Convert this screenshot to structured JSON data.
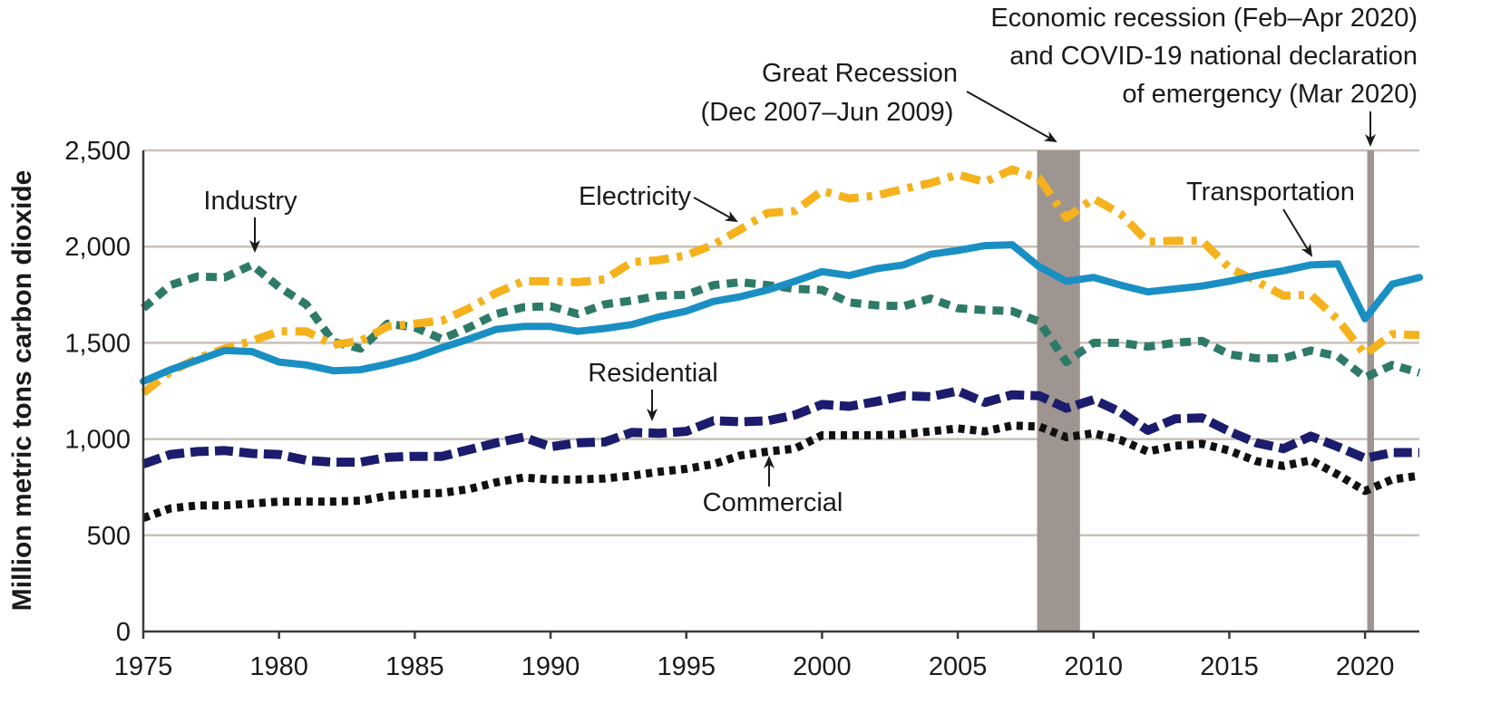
{
  "chart_data": {
    "type": "line",
    "ylabel": "Million metric tons carbon dioxide",
    "xlim": [
      1975,
      2022
    ],
    "ylim": [
      0,
      2500
    ],
    "x_ticks": [
      1975,
      1980,
      1985,
      1990,
      1995,
      2000,
      2005,
      2010,
      2015,
      2020
    ],
    "x_tick_labels": [
      "1975",
      "1980",
      "1985",
      "1990",
      "1995",
      "2000",
      "2005",
      "2010",
      "2015",
      "2020"
    ],
    "y_ticks": [
      0,
      500,
      1000,
      1500,
      2000,
      2500
    ],
    "y_tick_labels": [
      "0",
      "500",
      "1,000",
      "1,500",
      "2,000",
      "2,500"
    ],
    "grid": true,
    "x": [
      1975,
      1976,
      1977,
      1978,
      1979,
      1980,
      1981,
      1982,
      1983,
      1984,
      1985,
      1986,
      1987,
      1988,
      1989,
      1990,
      1991,
      1992,
      1993,
      1994,
      1995,
      1996,
      1997,
      1998,
      1999,
      2000,
      2001,
      2002,
      2003,
      2004,
      2005,
      2006,
      2007,
      2008,
      2009,
      2010,
      2011,
      2012,
      2013,
      2014,
      2015,
      2016,
      2017,
      2018,
      2019,
      2020,
      2021,
      2022
    ],
    "series": [
      {
        "name": "Transportation",
        "color": "#1a8fc4",
        "style": "solid",
        "values": [
          1300,
          1360,
          1410,
          1460,
          1455,
          1400,
          1385,
          1355,
          1360,
          1390,
          1425,
          1475,
          1520,
          1570,
          1585,
          1585,
          1560,
          1575,
          1595,
          1635,
          1665,
          1715,
          1740,
          1775,
          1820,
          1870,
          1850,
          1885,
          1905,
          1960,
          1980,
          2005,
          2010,
          1895,
          1820,
          1840,
          1800,
          1765,
          1780,
          1795,
          1820,
          1850,
          1875,
          1905,
          1910,
          1625,
          1805,
          1840
        ]
      },
      {
        "name": "Electricity",
        "color": "#f5b21c",
        "style": "dashdot",
        "values": [
          1240,
          1350,
          1420,
          1470,
          1510,
          1560,
          1560,
          1490,
          1510,
          1585,
          1600,
          1615,
          1680,
          1760,
          1820,
          1820,
          1815,
          1830,
          1920,
          1930,
          1955,
          2010,
          2090,
          2175,
          2185,
          2290,
          2250,
          2265,
          2300,
          2330,
          2375,
          2335,
          2400,
          2355,
          2150,
          2250,
          2170,
          2025,
          2030,
          2030,
          1890,
          1820,
          1745,
          1750,
          1620,
          1440,
          1545,
          1540
        ]
      },
      {
        "name": "Industry",
        "color": "#2e7a68",
        "style": "dashed",
        "values": [
          1680,
          1800,
          1845,
          1840,
          1905,
          1790,
          1700,
          1505,
          1470,
          1600,
          1580,
          1520,
          1580,
          1650,
          1685,
          1690,
          1650,
          1700,
          1720,
          1745,
          1750,
          1800,
          1815,
          1800,
          1780,
          1775,
          1710,
          1695,
          1690,
          1730,
          1680,
          1670,
          1665,
          1610,
          1400,
          1500,
          1500,
          1480,
          1500,
          1510,
          1440,
          1420,
          1420,
          1460,
          1430,
          1320,
          1385,
          1345
        ]
      },
      {
        "name": "Residential",
        "color": "#1c1c6e",
        "style": "longdash",
        "values": [
          870,
          920,
          935,
          940,
          925,
          920,
          890,
          880,
          880,
          905,
          910,
          910,
          945,
          980,
          1010,
          960,
          980,
          985,
          1035,
          1030,
          1040,
          1095,
          1090,
          1095,
          1125,
          1180,
          1170,
          1195,
          1225,
          1220,
          1250,
          1190,
          1230,
          1225,
          1160,
          1205,
          1140,
          1045,
          1105,
          1110,
          1040,
          980,
          950,
          1015,
          960,
          900,
          930,
          930
        ]
      },
      {
        "name": "Commercial",
        "color": "#111111",
        "style": "dotted",
        "values": [
          590,
          640,
          655,
          655,
          665,
          675,
          675,
          675,
          680,
          705,
          715,
          720,
          740,
          775,
          800,
          790,
          790,
          795,
          810,
          830,
          845,
          870,
          915,
          935,
          950,
          1020,
          1020,
          1020,
          1025,
          1040,
          1055,
          1040,
          1070,
          1065,
          1010,
          1030,
          995,
          935,
          965,
          975,
          940,
          885,
          860,
          890,
          815,
          730,
          790,
          810
        ]
      }
    ],
    "annotations": {
      "industry": "Industry",
      "electricity": "Electricity",
      "transportation": "Transportation",
      "residential": "Residential",
      "commercial": "Commercial",
      "great_recession_line1": "Great Recession",
      "great_recession_line2": "(Dec 2007–Jun 2009)",
      "covid_line1": "Economic recession (Feb–Apr 2020)",
      "covid_line2": "and COVID-19 national declaration",
      "covid_line3": "of emergency (Mar 2020)"
    },
    "shaded_periods": [
      {
        "start": 2007.92,
        "end": 2009.5,
        "color": "#9e9590"
      },
      {
        "start": 2020.08,
        "end": 2020.33,
        "color": "#9e9590"
      }
    ]
  }
}
